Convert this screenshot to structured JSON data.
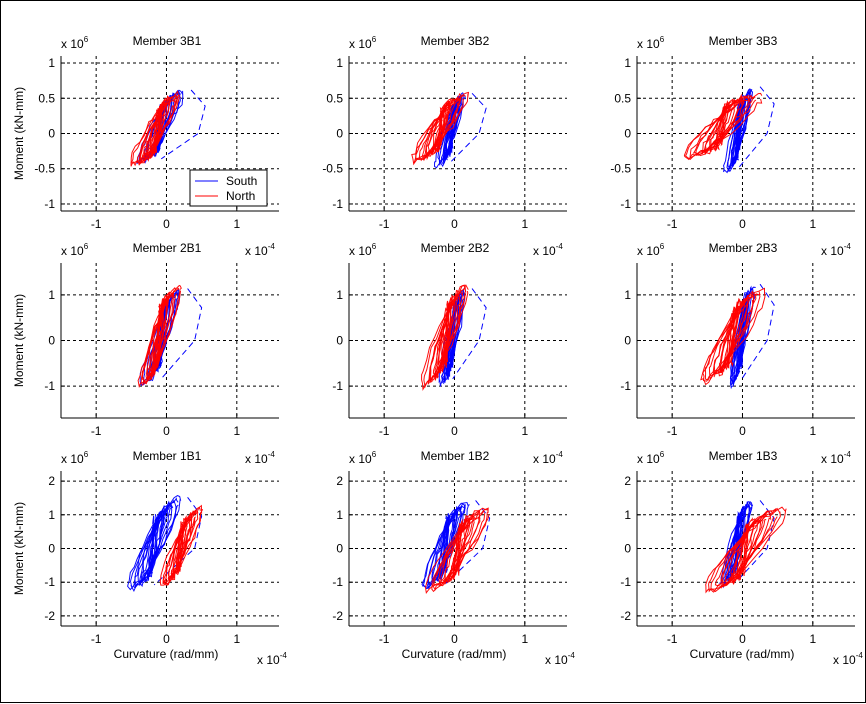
{
  "chart_data": [
    {
      "type": "line",
      "title": "Member 3B1",
      "xlabel": "",
      "ylabel": "Moment (kN-mm)",
      "xlim": [
        -1.5,
        1.6
      ],
      "ylim": [
        -1.1,
        1.1
      ],
      "xticks": [
        -1,
        0,
        1
      ],
      "yticks": [
        -1,
        -0.5,
        0,
        0.5,
        1
      ],
      "x_multiplier": "",
      "y_multiplier": "x 10^6",
      "legend": {
        "entries": [
          {
            "name": "South",
            "color": "#0000ff"
          },
          {
            "name": "North",
            "color": "#ff0000"
          }
        ],
        "position": "bottom-right"
      },
      "series": [
        {
          "name": "South",
          "color": "#0000ff",
          "x_peak_range": [
            -0.4,
            0.25
          ],
          "y_peak_range": [
            -0.45,
            0.65
          ],
          "dashed_envelope": true
        },
        {
          "name": "North",
          "color": "#ff0000",
          "x_peak_range": [
            -0.5,
            0.2
          ],
          "y_peak_range": [
            -0.5,
            0.6
          ]
        }
      ]
    },
    {
      "type": "line",
      "title": "Member 3B2",
      "xlabel": "",
      "ylabel": "",
      "xlim": [
        -1.5,
        1.6
      ],
      "ylim": [
        -1.1,
        1.1
      ],
      "xticks": [
        -1,
        0,
        1
      ],
      "yticks": [
        -1,
        -0.5,
        0,
        0.5,
        1
      ],
      "x_multiplier": "",
      "y_multiplier": "x 10^6",
      "series": [
        {
          "name": "South",
          "color": "#0000ff",
          "x_peak_range": [
            -0.25,
            0.15
          ],
          "y_peak_range": [
            -0.5,
            0.6
          ]
        },
        {
          "name": "North",
          "color": "#ff0000",
          "x_peak_range": [
            -0.6,
            0.2
          ],
          "y_peak_range": [
            -0.45,
            0.6
          ]
        }
      ]
    },
    {
      "type": "line",
      "title": "Member 3B3",
      "xlabel": "",
      "ylabel": "",
      "xlim": [
        -1.5,
        1.6
      ],
      "ylim": [
        -1.1,
        1.1
      ],
      "xticks": [
        -1,
        0,
        1
      ],
      "yticks": [
        -1,
        -0.5,
        0,
        0.5,
        1
      ],
      "x_multiplier": "",
      "y_multiplier": "x 10^6",
      "series": [
        {
          "name": "South",
          "color": "#0000ff",
          "x_peak_range": [
            -0.25,
            0.15
          ],
          "y_peak_range": [
            -0.6,
            0.7
          ]
        },
        {
          "name": "North",
          "color": "#ff0000",
          "x_peak_range": [
            -0.85,
            0.25
          ],
          "y_peak_range": [
            -0.4,
            0.6
          ]
        }
      ]
    },
    {
      "type": "line",
      "title": "Member 2B1",
      "xlabel": "",
      "ylabel": "Moment (kN-mm)",
      "xlim": [
        -1.5,
        1.6
      ],
      "ylim": [
        -1.7,
        1.7
      ],
      "xticks": [
        -1,
        0,
        1
      ],
      "yticks": [
        -1,
        0,
        1
      ],
      "x_multiplier": "x 10^-4",
      "y_multiplier": "x 10^6",
      "series": [
        {
          "name": "South",
          "color": "#0000ff",
          "x_peak_range": [
            -0.35,
            0.2
          ],
          "y_peak_range": [
            -1.05,
            1.2
          ]
        },
        {
          "name": "North",
          "color": "#ff0000",
          "x_peak_range": [
            -0.4,
            0.2
          ],
          "y_peak_range": [
            -1.1,
            1.3
          ]
        }
      ]
    },
    {
      "type": "line",
      "title": "Member 2B2",
      "xlabel": "",
      "ylabel": "",
      "xlim": [
        -1.5,
        1.6
      ],
      "ylim": [
        -1.7,
        1.7
      ],
      "xticks": [
        -1,
        0,
        1
      ],
      "yticks": [
        -1,
        0,
        1
      ],
      "x_multiplier": "x 10^-4",
      "y_multiplier": "x 10^6",
      "series": [
        {
          "name": "South",
          "color": "#0000ff",
          "x_peak_range": [
            -0.2,
            0.15
          ],
          "y_peak_range": [
            -1.05,
            1.2
          ]
        },
        {
          "name": "North",
          "color": "#ff0000",
          "x_peak_range": [
            -0.45,
            0.2
          ],
          "y_peak_range": [
            -1.1,
            1.3
          ]
        }
      ]
    },
    {
      "type": "line",
      "title": "Member 2B3",
      "xlabel": "",
      "ylabel": "",
      "xlim": [
        -1.5,
        1.6
      ],
      "ylim": [
        -1.7,
        1.7
      ],
      "xticks": [
        -1,
        0,
        1
      ],
      "yticks": [
        -1,
        0,
        1
      ],
      "x_multiplier": "x 10^-4",
      "y_multiplier": "x 10^6",
      "series": [
        {
          "name": "South",
          "color": "#0000ff",
          "x_peak_range": [
            -0.2,
            0.15
          ],
          "y_peak_range": [
            -1.1,
            1.3
          ]
        },
        {
          "name": "North",
          "color": "#ff0000",
          "x_peak_range": [
            -0.6,
            0.3
          ],
          "y_peak_range": [
            -1.0,
            1.2
          ]
        }
      ]
    },
    {
      "type": "line",
      "title": "Member 1B1",
      "xlabel": "Curvature (rad/mm)",
      "ylabel": "Moment (kN-mm)",
      "xlim": [
        -1.5,
        1.6
      ],
      "ylim": [
        -2.3,
        2.3
      ],
      "xticks": [
        -1,
        0,
        1
      ],
      "yticks": [
        -2,
        -1,
        0,
        1,
        2
      ],
      "x_multiplier": "x 10^-4",
      "y_multiplier": "x 10^6",
      "series": [
        {
          "name": "South",
          "color": "#0000ff",
          "x_peak_range": [
            -0.55,
            0.2
          ],
          "y_peak_range": [
            -1.35,
            1.6
          ]
        },
        {
          "name": "North",
          "color": "#ff0000",
          "x_peak_range": [
            -0.1,
            0.5
          ],
          "y_peak_range": [
            -1.2,
            1.3
          ]
        }
      ]
    },
    {
      "type": "line",
      "title": "Member 1B2",
      "xlabel": "Curvature (rad/mm)",
      "ylabel": "",
      "xlim": [
        -1.5,
        1.6
      ],
      "ylim": [
        -2.3,
        2.3
      ],
      "xticks": [
        -1,
        0,
        1
      ],
      "yticks": [
        -2,
        -1,
        0,
        1,
        2
      ],
      "x_multiplier": "x 10^-4",
      "y_multiplier": "x 10^6",
      "series": [
        {
          "name": "South",
          "color": "#0000ff",
          "x_peak_range": [
            -0.45,
            0.2
          ],
          "y_peak_range": [
            -1.3,
            1.5
          ]
        },
        {
          "name": "North",
          "color": "#ff0000",
          "x_peak_range": [
            -0.4,
            0.5
          ],
          "y_peak_range": [
            -1.35,
            1.3
          ]
        }
      ]
    },
    {
      "type": "line",
      "title": "Member 1B3",
      "xlabel": "Curvature (rad/mm)",
      "ylabel": "",
      "xlim": [
        -1.5,
        1.6
      ],
      "ylim": [
        -2.3,
        2.3
      ],
      "xticks": [
        -1,
        0,
        1
      ],
      "yticks": [
        -2,
        -1,
        0,
        1,
        2
      ],
      "x_multiplier": "x 10^-4",
      "y_multiplier": "x 10^6",
      "series": [
        {
          "name": "South",
          "color": "#0000ff",
          "x_peak_range": [
            -0.3,
            0.15
          ],
          "y_peak_range": [
            -1.2,
            1.5
          ]
        },
        {
          "name": "North",
          "color": "#ff0000",
          "x_peak_range": [
            -0.55,
            0.6
          ],
          "y_peak_range": [
            -1.4,
            1.3
          ]
        }
      ]
    }
  ]
}
